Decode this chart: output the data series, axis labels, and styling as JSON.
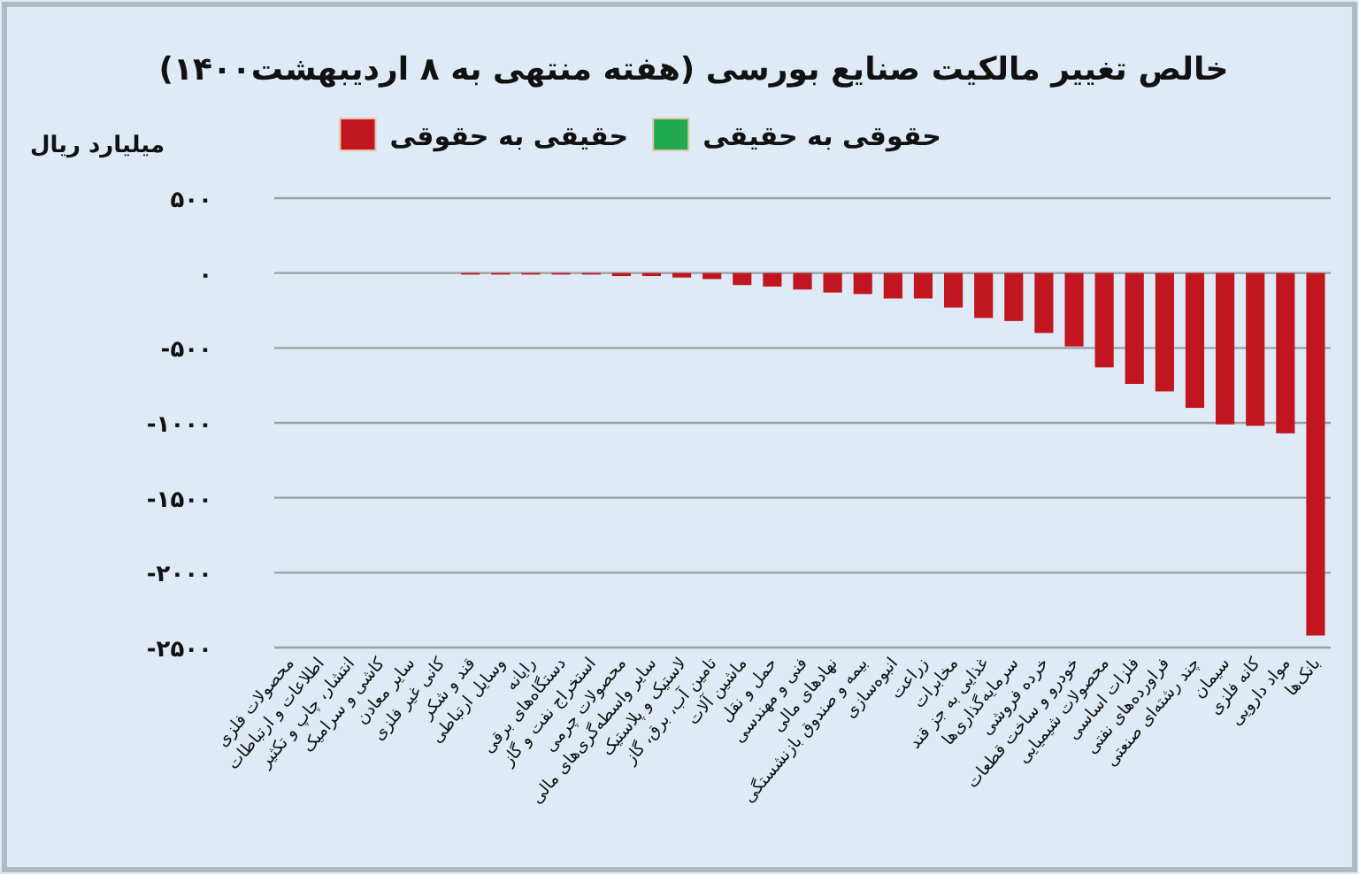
{
  "chart_data": {
    "type": "bar",
    "title": "خالص تغییر مالکیت صنایع بورسی (هفته منتهی به ۸ اردیبهشت۱۴۰۰)",
    "ylabel": "میلیارد ریال",
    "categories": [
      "محصولات فلزی",
      "اطلاعات و ارتباطات",
      "انتشار، چاپ و تکثیر",
      "کاشی و سرامیک",
      "سایر معادن",
      "کانی غیر فلزی",
      "قند و شکر",
      "وسایل ارتباطی",
      "رایانه",
      "دستگاه‌های برقی",
      "استخراج نفت و گاز",
      "محصولات چرمی",
      "سایر واسطه‌گری‌های مالی",
      "لاستیک و پلاستیک",
      "تامین آب، برق، گاز",
      "ماشین آلات",
      "حمل و نقل",
      "فنی و مهندسی",
      "نهادهای مالی",
      "بیمه و صندوق بازنشستگی",
      "انبوه‌سازی",
      "زراعت",
      "مخابرات",
      "غذایی به جز قند",
      "سرمایه‌گذاری‌ها",
      "خرده فروشی",
      "خودرو و ساخت قطعات",
      "محصولات شیمیایی",
      "فلزات اساسی",
      "فراورده‌های نفتی",
      "چند رشته‌ای صنعتی",
      "سیمان",
      "کانه فلزی",
      "مواد دارویی",
      "بانک‌ها"
    ],
    "series": [
      {
        "name": "حقوقی به حقیقی",
        "color": "#21a94f",
        "values": [
          null,
          null,
          null,
          null,
          null,
          null,
          null,
          null,
          null,
          null,
          null,
          null,
          null,
          null,
          null,
          null,
          null,
          null,
          null,
          null,
          null,
          null,
          null,
          null,
          null,
          null,
          null,
          null,
          null,
          null,
          null,
          null,
          null,
          null,
          null
        ]
      },
      {
        "name": "حقیقی به حقوقی",
        "color": "#c1151f",
        "values": [
          0,
          0,
          0,
          0,
          0,
          0,
          -10,
          -10,
          -10,
          -10,
          -10,
          -20,
          -20,
          -30,
          -40,
          -80,
          -90,
          -110,
          -130,
          -140,
          -170,
          -170,
          -230,
          -300,
          -320,
          -400,
          -490,
          -630,
          -740,
          -790,
          -900,
          -1010,
          -1020,
          -1070,
          -2420
        ]
      }
    ],
    "ylim": [
      -2500,
      500
    ],
    "yticks": [
      {
        "value": 500,
        "label": "۵۰۰"
      },
      {
        "value": 0,
        "label": "۰"
      },
      {
        "value": -500,
        "label": "-۵۰۰"
      },
      {
        "value": -1000,
        "label": "-۱۰۰۰"
      },
      {
        "value": -1500,
        "label": "-۱۵۰۰"
      },
      {
        "value": -2000,
        "label": "-۲۰۰۰"
      },
      {
        "value": -2500,
        "label": "-۲۵۰۰"
      }
    ],
    "grid": "y",
    "legend": "top"
  }
}
